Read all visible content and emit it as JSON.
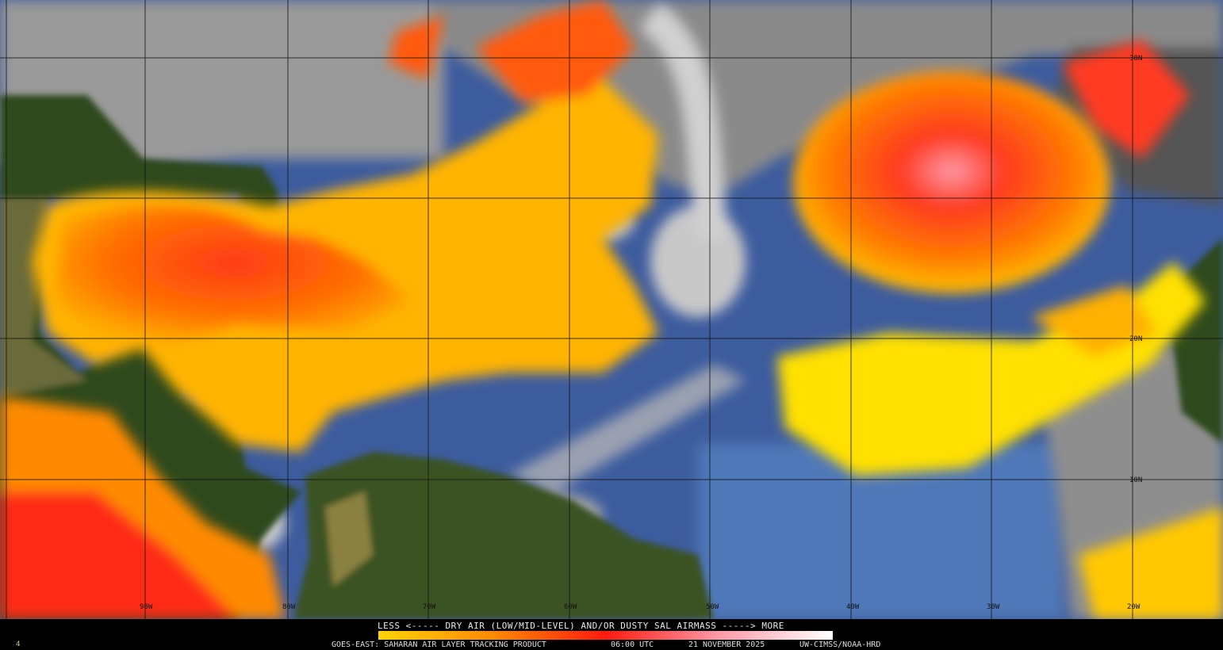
{
  "map": {
    "longitude_labels": [
      "90W",
      "80W",
      "70W",
      "60W",
      "50W",
      "40W",
      "30W",
      "20W"
    ],
    "latitude_labels": [
      "30N",
      "20N",
      "10N"
    ],
    "colors": {
      "ocean": "#3d5c9e",
      "land": "#2f4a1c",
      "cloud": "#b8b8b8",
      "dust_low": "#ffe000",
      "dust_mid": "#ff7a00",
      "dust_high": "#ff2a1a",
      "dust_max": "#ffb0c0"
    }
  },
  "legend": {
    "title": "LESS <----- DRY AIR (LOW/MID-LEVEL) AND/OR DUSTY SAL AIRMASS -----> MORE",
    "colorbar_stops": [
      "#ffd400",
      "#ff8a00",
      "#ff1a10",
      "#ff9aa8",
      "#ffffff"
    ]
  },
  "footer": {
    "product": "GOES-EAST: SAHARAN AIR LAYER TRACKING PRODUCT",
    "time": "06:00 UTC",
    "date": "21 NOVEMBER 2025",
    "credit": "UW-CIMSS/NOAA-HRD",
    "frame": "4"
  }
}
